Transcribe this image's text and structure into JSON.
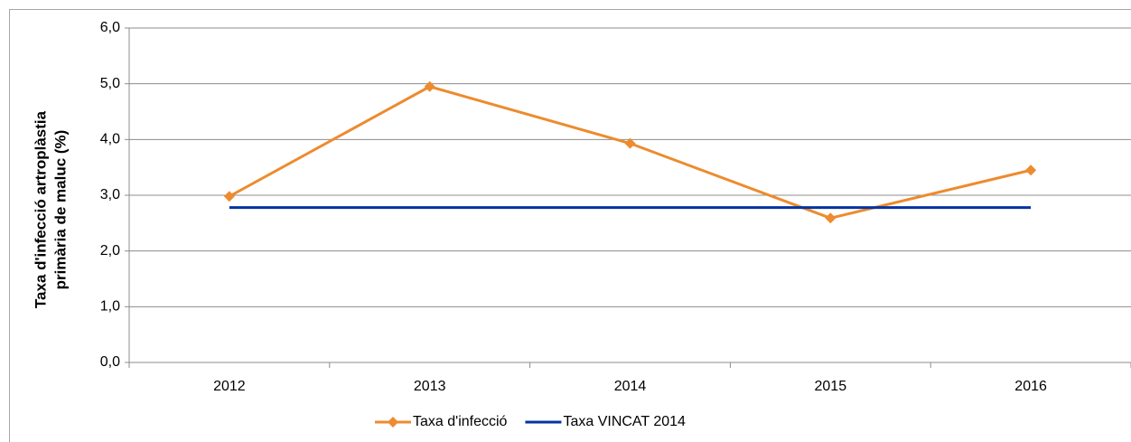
{
  "chart_data": {
    "type": "line",
    "ylabel": [
      "Taxa d'infecció artroplàstia",
      "primària de maluc  (%)"
    ],
    "categories": [
      "2012",
      "2013",
      "2014",
      "2015",
      "2016"
    ],
    "series": [
      {
        "name": "Taxa d'infecció",
        "color": "#ed8b2e",
        "marker": "diamond",
        "values": [
          2.98,
          4.95,
          3.93,
          2.59,
          3.45
        ]
      },
      {
        "name": "Taxa VINCAT 2014",
        "color": "#0033a0",
        "marker": "none",
        "values": [
          2.78,
          2.78,
          2.78,
          2.78,
          2.78
        ]
      }
    ],
    "ylim": [
      0,
      6
    ],
    "yticks": [
      {
        "value": 0,
        "label": "0,0"
      },
      {
        "value": 1,
        "label": "1,0"
      },
      {
        "value": 2,
        "label": "2,0"
      },
      {
        "value": 3,
        "label": "3,0"
      },
      {
        "value": 4,
        "label": "4,0"
      },
      {
        "value": 5,
        "label": "5,0"
      },
      {
        "value": 6,
        "label": "6,0"
      }
    ],
    "grid": true,
    "legend": "bottom"
  }
}
